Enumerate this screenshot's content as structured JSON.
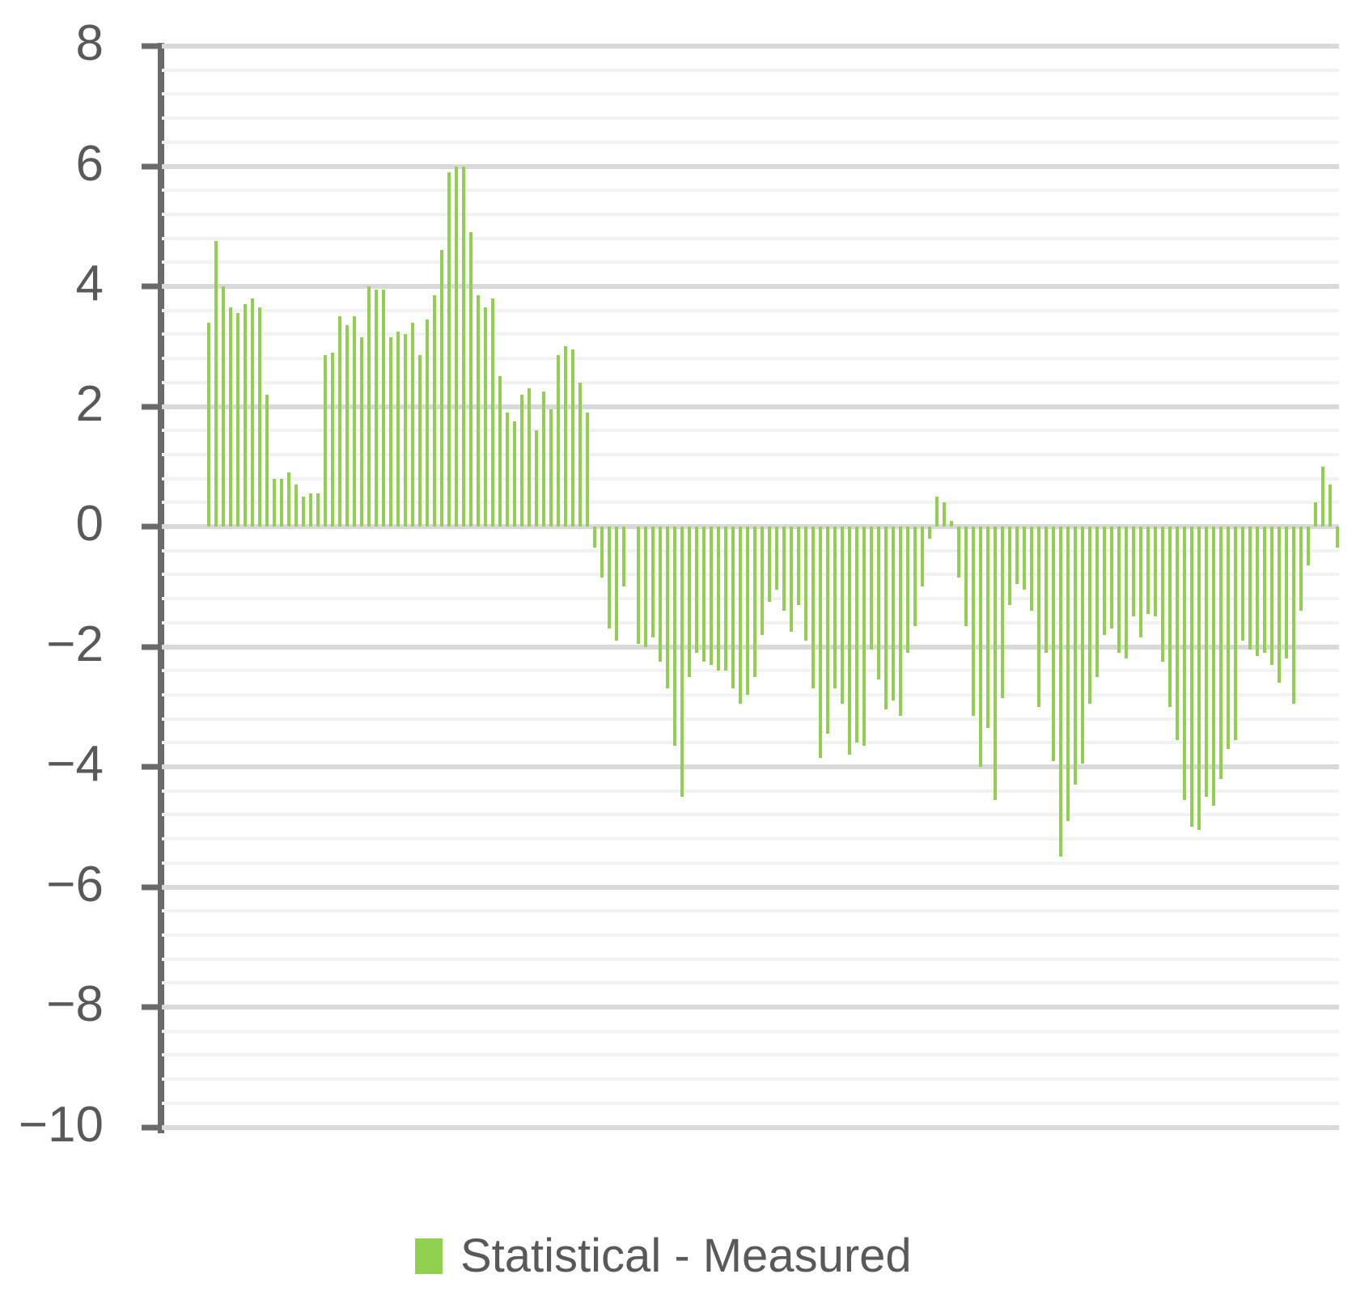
{
  "legend": {
    "label": "Statistical - Measured"
  },
  "colors": {
    "bar": "#92ce50",
    "legend_swatch": "#92d050",
    "axis_line": "#6a6a6a",
    "tick_label": "#595959",
    "major_gridline": "#d9d9d9",
    "minor_gridline": "#f2f2f2"
  },
  "y_axis": {
    "min": -10,
    "max": 8,
    "major_step": 2,
    "minor_step": 0.4,
    "tick_labels": [
      "8",
      "6",
      "4",
      "2",
      "0",
      "−2",
      "−4",
      "−6",
      "−8",
      "−10"
    ]
  },
  "chart_data": {
    "type": "bar",
    "title": "",
    "xlabel": "",
    "ylabel": "",
    "ylim": [
      -10,
      8
    ],
    "y_major_step": 2,
    "y_minor_step": 0.4,
    "grid": true,
    "legend_position": "bottom",
    "x_axis_labels_visible": false,
    "series": [
      {
        "name": "Statistical - Measured",
        "values": [
          3.4,
          4.75,
          4.0,
          3.65,
          3.55,
          3.7,
          3.8,
          3.65,
          2.2,
          0.8,
          0.8,
          0.9,
          0.7,
          0.5,
          0.55,
          0.55,
          2.85,
          2.9,
          3.5,
          3.35,
          3.5,
          3.15,
          4.0,
          3.95,
          3.95,
          3.15,
          3.25,
          3.2,
          3.4,
          2.85,
          3.45,
          3.85,
          4.6,
          5.9,
          6.0,
          6.0,
          4.9,
          3.85,
          3.65,
          3.8,
          2.5,
          1.9,
          1.75,
          2.2,
          2.3,
          1.6,
          2.25,
          1.95,
          2.85,
          3.0,
          2.95,
          2.4,
          1.9,
          -0.35,
          -0.85,
          -1.7,
          -1.9,
          -1.0,
          0.0,
          -1.95,
          -2.0,
          -1.85,
          -2.25,
          -2.7,
          -3.65,
          -4.5,
          -2.5,
          -2.1,
          -2.25,
          -2.3,
          -2.4,
          -2.4,
          -2.7,
          -2.95,
          -2.8,
          -2.5,
          -1.8,
          -1.25,
          -1.05,
          -1.4,
          -1.75,
          -1.3,
          -1.9,
          -2.7,
          -3.85,
          -3.45,
          -2.7,
          -2.95,
          -3.8,
          -3.6,
          -3.65,
          -2.05,
          -2.55,
          -3.05,
          -2.9,
          -3.15,
          -2.1,
          -1.65,
          -1.0,
          -0.2,
          0.5,
          0.4,
          0.1,
          -0.85,
          -1.65,
          -3.15,
          -4.0,
          -3.35,
          -4.55,
          -2.85,
          -1.3,
          -0.95,
          -1.05,
          -1.4,
          -3.0,
          -2.1,
          -3.9,
          -5.5,
          -4.9,
          -4.3,
          -3.95,
          -2.95,
          -2.5,
          -1.8,
          -1.7,
          -2.1,
          -2.2,
          -1.5,
          -1.85,
          -1.45,
          -1.5,
          -2.25,
          -3.0,
          -3.55,
          -4.55,
          -5.0,
          -5.05,
          -4.5,
          -4.65,
          -4.2,
          -3.7,
          -3.55,
          -1.9,
          -2.05,
          -2.15,
          -2.1,
          -2.3,
          -2.6,
          -2.2,
          -2.95,
          -1.4,
          -0.65,
          0.4,
          1.0,
          0.7,
          -0.35
        ]
      }
    ]
  }
}
